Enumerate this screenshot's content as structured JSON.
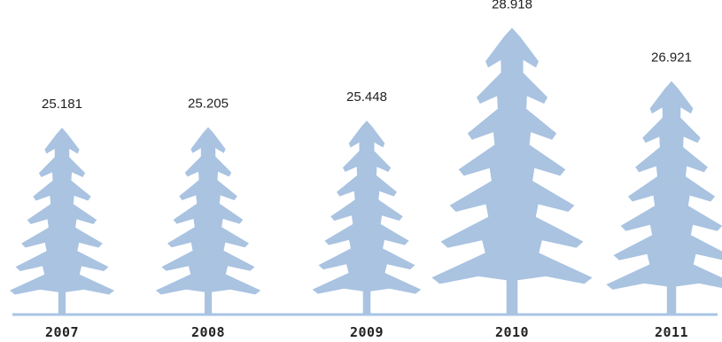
{
  "chart_data": {
    "type": "bar",
    "categories": [
      "2007",
      "2008",
      "2009",
      "2010",
      "2011"
    ],
    "values": [
      25.181,
      25.205,
      25.448,
      28.918,
      26.921
    ],
    "value_labels": [
      "25.181",
      "25.205",
      "25.448",
      "28.918",
      "26.921"
    ],
    "title": "",
    "xlabel": "",
    "ylabel": "",
    "legend": "none",
    "grid": false
  },
  "colors": {
    "tree_fill": "#a9c3e1",
    "baseline": "#a8c4e4",
    "label_text": "#1f1f1f",
    "year_text": "#222222"
  },
  "icons": {
    "mark": "pine-tree-icon"
  }
}
